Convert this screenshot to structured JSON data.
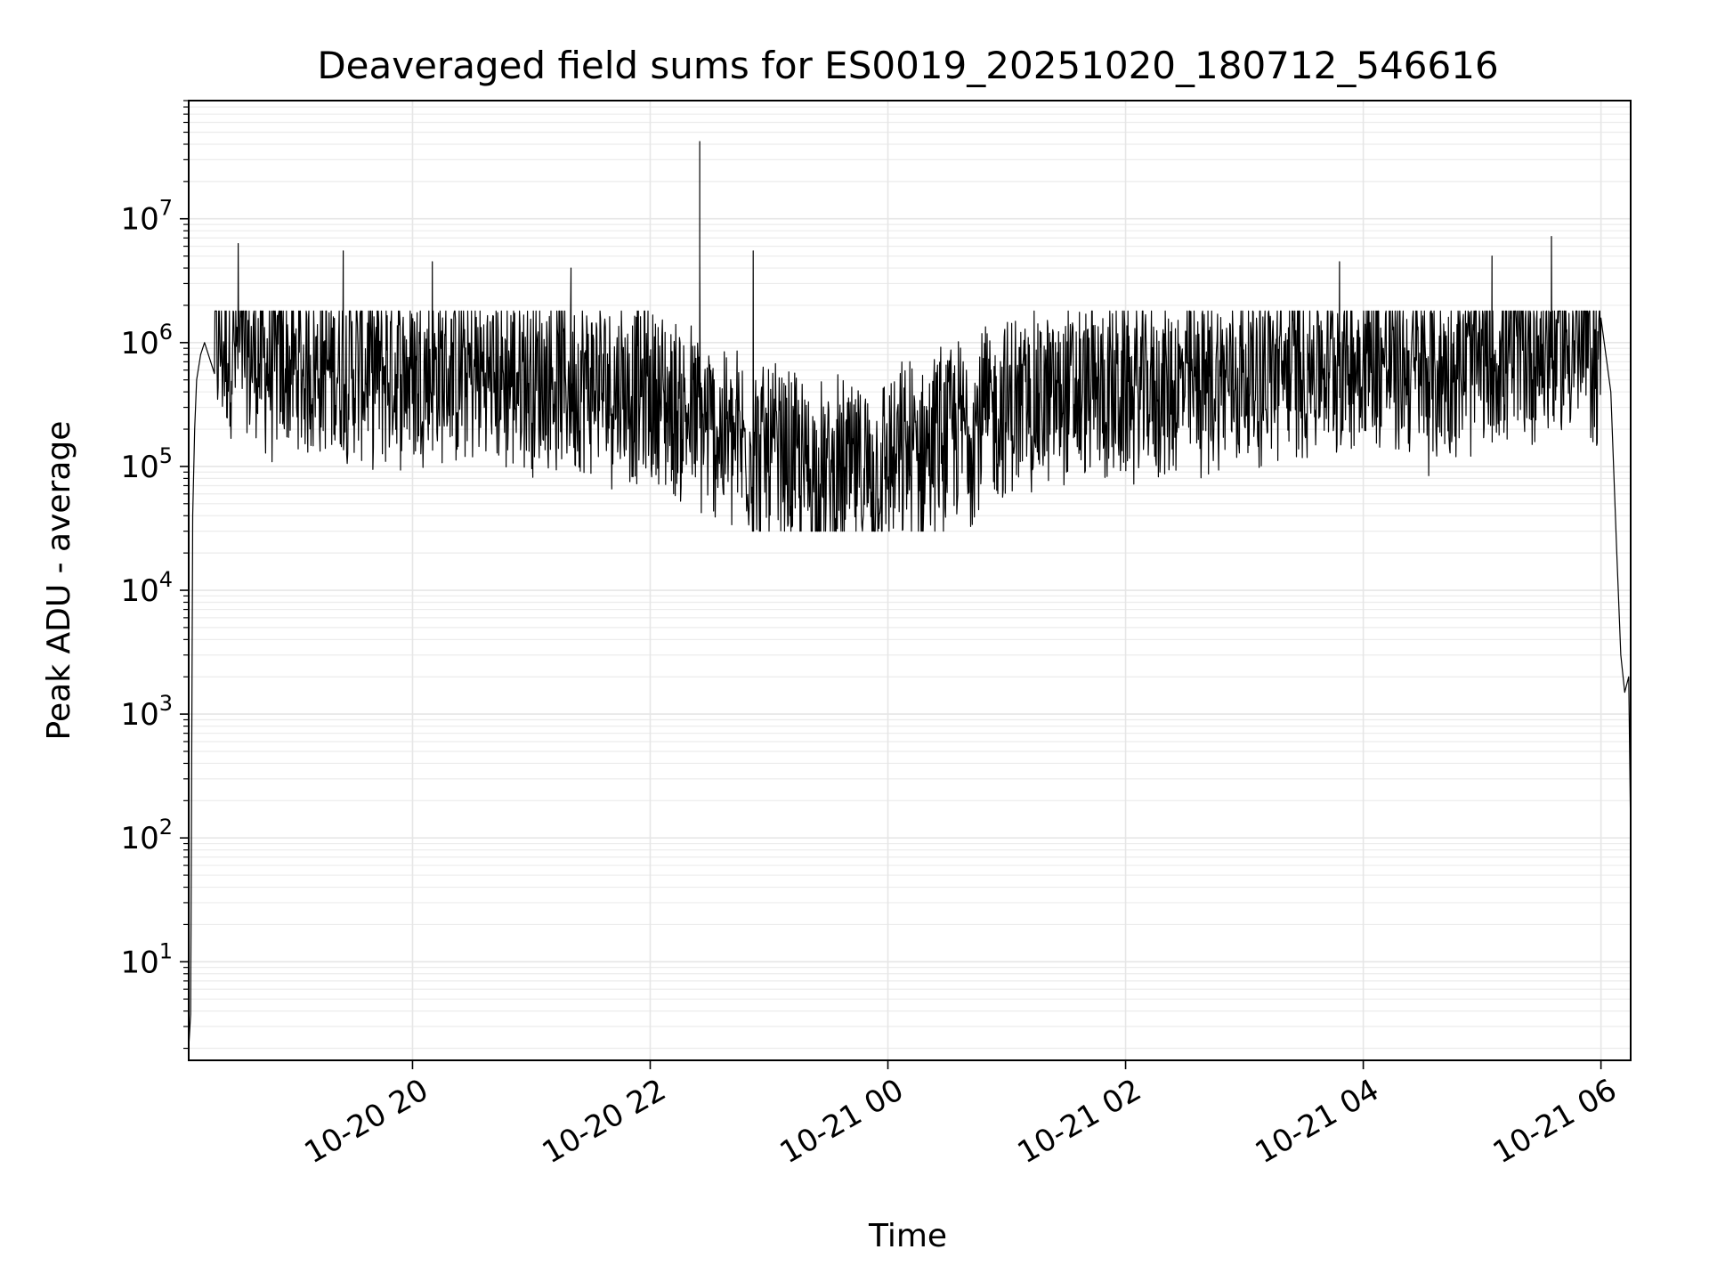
{
  "chart_data": {
    "type": "line",
    "title": "Deaveraged field sums for ES0019_20251020_180712_546616",
    "xlabel": "Time",
    "ylabel": "Peak ADU - average",
    "yscale": "log",
    "grid": true,
    "x_ticks": [
      "10-20 20",
      "10-20 22",
      "10-21 00",
      "10-21 02",
      "10-21 04",
      "10-21 06"
    ],
    "y_ticks": [
      "1",
      "2",
      "3",
      "4",
      "5",
      "6",
      "7"
    ],
    "xlim": [
      "2025-10-20 18:07",
      "2025-10-21 06:15"
    ],
    "ylim": [
      1.6,
      90000000.0
    ],
    "series": [
      {
        "color": "#000000",
        "x": [
          "2025-10-20 18:07",
          "2025-10-20 18:08",
          "2025-10-20 18:09",
          "2025-10-20 18:10",
          "2025-10-20 18:11",
          "2025-10-20 18:13",
          "2025-10-20 18:15",
          "2025-10-20 18:20",
          "2025-10-20 18:30",
          "2025-10-20 18:45",
          "2025-10-20 19:00",
          "2025-10-20 19:15",
          "2025-10-20 19:30",
          "2025-10-20 19:45",
          "2025-10-20 20:00",
          "2025-10-20 20:30",
          "2025-10-20 21:00",
          "2025-10-20 21:30",
          "2025-10-20 22:00",
          "2025-10-20 22:30",
          "2025-10-20 23:00",
          "2025-10-20 23:30",
          "2025-10-21 00:00",
          "2025-10-21 00:30",
          "2025-10-21 01:00",
          "2025-10-21 01:30",
          "2025-10-21 02:00",
          "2025-10-21 02:30",
          "2025-10-21 03:00",
          "2025-10-21 03:30",
          "2025-10-21 04:00",
          "2025-10-21 04:30",
          "2025-10-21 05:00",
          "2025-10-21 05:30",
          "2025-10-21 05:50",
          "2025-10-21 06:00",
          "2025-10-21 06:05",
          "2025-10-21 06:08",
          "2025-10-21 06:10",
          "2025-10-21 06:12",
          "2025-10-21 06:14",
          "2025-10-21 06:15"
        ],
        "y": [
          2.0,
          3.8,
          40000,
          200000,
          500000,
          800000,
          1000000,
          1100000,
          900000,
          700000,
          600000,
          650000,
          620000,
          600000,
          580000,
          560000,
          520000,
          480000,
          400000,
          200000,
          120000,
          80000,
          100000,
          180000,
          300000,
          380000,
          400000,
          450000,
          550000,
          650000,
          800000,
          550000,
          700000,
          900000,
          1000000,
          800000,
          400000,
          20000,
          3000,
          1500,
          2000,
          100
        ]
      }
    ],
    "spikes": [
      {
        "x": "2025-10-20 18:32",
        "y": 6300000
      },
      {
        "x": "2025-10-20 19:25",
        "y": 5500000
      },
      {
        "x": "2025-10-20 20:10",
        "y": 4500000
      },
      {
        "x": "2025-10-20 21:20",
        "y": 4000000
      },
      {
        "x": "2025-10-20 22:25",
        "y": 42000000
      },
      {
        "x": "2025-10-20 22:25",
        "y": 5300000
      },
      {
        "x": "2025-10-20 22:52",
        "y": 5500000
      },
      {
        "x": "2025-10-21 03:48",
        "y": 4500000
      },
      {
        "x": "2025-10-21 05:05",
        "y": 5000000
      },
      {
        "x": "2025-10-21 05:35",
        "y": 7200000
      }
    ]
  }
}
